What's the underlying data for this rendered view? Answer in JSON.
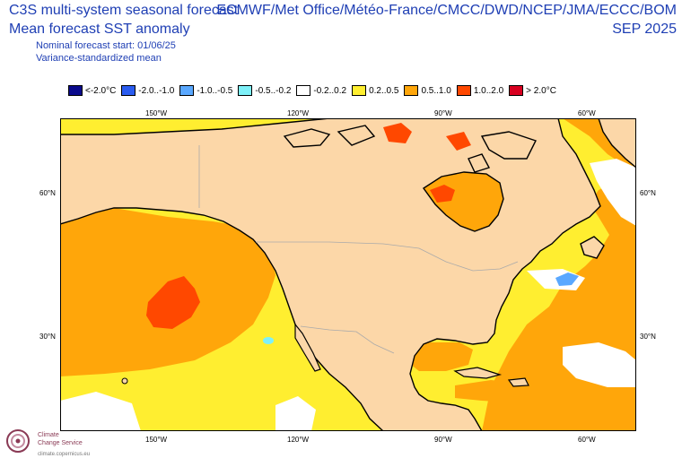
{
  "header": {
    "title_line1": "C3S multi-system seasonal forecast",
    "title_line2": "Mean forecast SST anomaly",
    "start_line": "Nominal forecast start: 01/06/25",
    "method_line": "Variance-standardized mean",
    "systems": "ECMWF/Met Office/Météo-France/CMCC/DWD/NCEP/JMA/ECCC/BOM",
    "valid_month": "SEP 2025"
  },
  "legend": [
    {
      "label": "<-2.0°C",
      "color": "#0a0a8c"
    },
    {
      "label": "-2.0..-1.0",
      "color": "#2a5cf0"
    },
    {
      "label": "-1.0..-0.5",
      "color": "#5aa8ff"
    },
    {
      "label": "-0.5..-0.2",
      "color": "#7ef0f8"
    },
    {
      "label": "-0.2..0.2",
      "color": "#ffffff"
    },
    {
      "label": "0.2..0.5",
      "color": "#ffee30"
    },
    {
      "label": "0.5..1.0",
      "color": "#ffa60a"
    },
    {
      "label": "1.0..2.0",
      "color": "#ff4800"
    },
    {
      "label": "> 2.0°C",
      "color": "#d80020"
    }
  ],
  "axes": {
    "lon_top": [
      "150°W",
      "120°W",
      "90°W",
      "60°W"
    ],
    "lon_bottom": [
      "150°W",
      "120°W",
      "90°W",
      "60°W"
    ],
    "lat_left": [
      "60°N",
      "30°N"
    ],
    "lat_right": [
      "60°N",
      "30°N"
    ]
  },
  "map_colors": {
    "land": "#fcd7a8",
    "ocean_base": "#ffee30",
    "coast": "#000000",
    "border": "#aaaaaa"
  },
  "footer": {
    "logo_line1": "Climate",
    "logo_line2": "Change Service",
    "url": "climate.copernicus.eu"
  }
}
